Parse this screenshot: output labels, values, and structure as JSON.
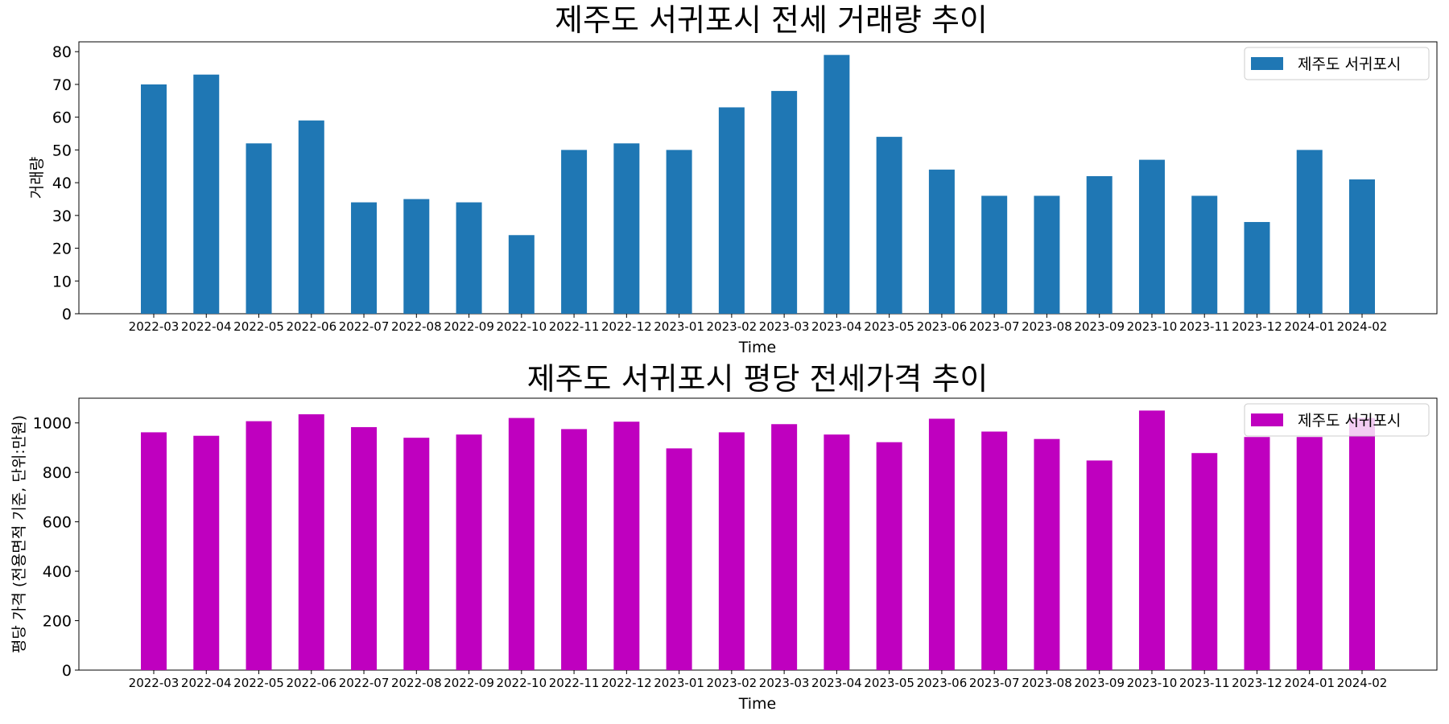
{
  "chart_data": [
    {
      "type": "bar",
      "title": "제주도 서귀포시 전세 거래량 추이",
      "xlabel": "Time",
      "ylabel": "거래량",
      "categories": [
        "2022-03",
        "2022-04",
        "2022-05",
        "2022-06",
        "2022-07",
        "2022-08",
        "2022-09",
        "2022-10",
        "2022-11",
        "2022-12",
        "2023-01",
        "2023-02",
        "2023-03",
        "2023-04",
        "2023-05",
        "2023-06",
        "2023-07",
        "2023-08",
        "2023-09",
        "2023-10",
        "2023-11",
        "2023-12",
        "2024-01",
        "2024-02"
      ],
      "series": [
        {
          "name": "제주도 서귀포시",
          "color": "#1f77b4",
          "values": [
            70,
            73,
            52,
            59,
            34,
            35,
            34,
            24,
            50,
            52,
            50,
            63,
            68,
            79,
            54,
            44,
            36,
            36,
            42,
            47,
            36,
            28,
            50,
            41
          ]
        }
      ],
      "ylim": [
        0,
        83
      ],
      "yticks": [
        0,
        10,
        20,
        30,
        40,
        50,
        60,
        70,
        80
      ],
      "grid": false,
      "legend": "upper right"
    },
    {
      "type": "bar",
      "title": "제주도 서귀포시 평당 전세가격 추이",
      "xlabel": "Time",
      "ylabel": "평당 가격 (전용면적 기준, 단위:만원)",
      "categories": [
        "2022-03",
        "2022-04",
        "2022-05",
        "2022-06",
        "2022-07",
        "2022-08",
        "2022-09",
        "2022-10",
        "2022-11",
        "2022-12",
        "2023-01",
        "2023-02",
        "2023-03",
        "2023-04",
        "2023-05",
        "2023-06",
        "2023-07",
        "2023-08",
        "2023-09",
        "2023-10",
        "2023-11",
        "2023-12",
        "2024-01",
        "2024-02"
      ],
      "series": [
        {
          "name": "제주도 서귀포시",
          "color": "#bf00bf",
          "values": [
            962,
            948,
            1007,
            1035,
            983,
            940,
            953,
            1020,
            975,
            1005,
            897,
            962,
            995,
            953,
            922,
            1017,
            965,
            935,
            848,
            1050,
            878,
            943,
            943,
            1020
          ]
        }
      ],
      "ylim": [
        0,
        1100
      ],
      "yticks": [
        0,
        200,
        400,
        600,
        800,
        1000
      ],
      "grid": false,
      "legend": "upper right"
    }
  ]
}
